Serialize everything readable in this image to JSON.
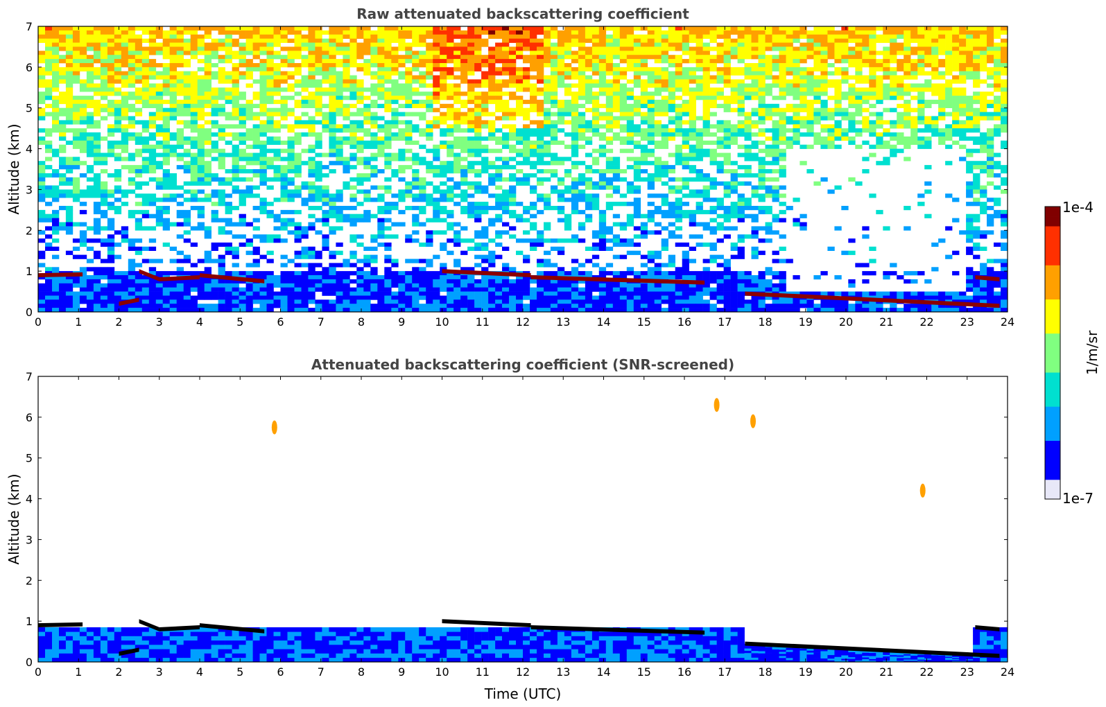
{
  "colors": {
    "jet_scale": [
      "#e8e8f8",
      "#0000ff",
      "#00a0ff",
      "#00e0d0",
      "#80ff80",
      "#ffff00",
      "#ffa000",
      "#ff3000",
      "#800000"
    ],
    "cloud_layer": "#8b0000",
    "screened_edge": "#000000",
    "title_text": "#444444"
  },
  "colorbar": {
    "max_label": "1e-4",
    "min_label": "1e-7",
    "unit_label": "1/m/sr",
    "scale": "log"
  },
  "chart_data": [
    {
      "type": "heatmap",
      "title": "Raw attenuated backscattering coefficient",
      "xlabel": "",
      "ylabel": "Altitude (km)",
      "xlim": [
        0,
        24
      ],
      "ylim": [
        0,
        7
      ],
      "x_ticks": [
        "0",
        "1",
        "2",
        "3",
        "4",
        "5",
        "6",
        "7",
        "8",
        "9",
        "10",
        "11",
        "12",
        "13",
        "14",
        "15",
        "16",
        "17",
        "18",
        "19",
        "20",
        "21",
        "22",
        "23",
        "24"
      ],
      "y_ticks": [
        "0",
        "1",
        "2",
        "3",
        "4",
        "5",
        "6",
        "7"
      ],
      "colorbar_range": [
        1e-07,
        0.0001
      ],
      "noise_background": true,
      "cloud_layers": [
        {
          "x": [
            0,
            1.1
          ],
          "y": [
            0.9,
            0.92
          ]
        },
        {
          "x": [
            2.0,
            2.5
          ],
          "y": [
            0.2,
            0.3
          ]
        },
        {
          "x": [
            2.5,
            3.0
          ],
          "y": [
            1.0,
            0.8
          ]
        },
        {
          "x": [
            3.0,
            4.0
          ],
          "y": [
            0.8,
            0.85
          ]
        },
        {
          "x": [
            4.0,
            5.6
          ],
          "y": [
            0.9,
            0.75
          ]
        },
        {
          "x": [
            10.0,
            12.2
          ],
          "y": [
            1.0,
            0.9
          ]
        },
        {
          "x": [
            12.2,
            16.5
          ],
          "y": [
            0.85,
            0.72
          ]
        },
        {
          "x": [
            17.5,
            23.8
          ],
          "y": [
            0.45,
            0.15
          ]
        },
        {
          "x": [
            23.2,
            23.8
          ],
          "y": [
            0.85,
            0.8
          ]
        }
      ]
    },
    {
      "type": "heatmap",
      "title": "Attenuated backscattering coefficient (SNR-screened)",
      "xlabel": "Time (UTC)",
      "ylabel": "Altitude (km)",
      "xlim": [
        0,
        24
      ],
      "ylim": [
        0,
        7
      ],
      "x_ticks": [
        "0",
        "1",
        "2",
        "3",
        "4",
        "5",
        "6",
        "7",
        "8",
        "9",
        "10",
        "11",
        "12",
        "13",
        "14",
        "15",
        "16",
        "17",
        "18",
        "19",
        "20",
        "21",
        "22",
        "23",
        "24"
      ],
      "y_ticks": [
        "0",
        "1",
        "2",
        "3",
        "4",
        "5",
        "6",
        "7"
      ],
      "colorbar_range": [
        1e-07,
        0.0001
      ],
      "noise_background": false,
      "cloud_layers": [
        {
          "x": [
            0,
            1.1
          ],
          "y": [
            0.9,
            0.92
          ]
        },
        {
          "x": [
            2.0,
            2.5
          ],
          "y": [
            0.2,
            0.3
          ]
        },
        {
          "x": [
            2.5,
            3.0
          ],
          "y": [
            1.0,
            0.8
          ]
        },
        {
          "x": [
            3.0,
            4.0
          ],
          "y": [
            0.8,
            0.85
          ]
        },
        {
          "x": [
            4.0,
            5.6
          ],
          "y": [
            0.9,
            0.75
          ]
        },
        {
          "x": [
            10.0,
            12.2
          ],
          "y": [
            1.0,
            0.9
          ]
        },
        {
          "x": [
            12.2,
            16.5
          ],
          "y": [
            0.85,
            0.72
          ]
        },
        {
          "x": [
            17.5,
            23.8
          ],
          "y": [
            0.45,
            0.15
          ]
        },
        {
          "x": [
            23.2,
            23.8
          ],
          "y": [
            0.85,
            0.8
          ]
        }
      ],
      "aerosol_patches": [
        {
          "x": 5.85,
          "y": 5.75
        },
        {
          "x": 16.8,
          "y": 6.3
        },
        {
          "x": 17.7,
          "y": 5.9
        },
        {
          "x": 21.9,
          "y": 4.2
        }
      ]
    }
  ]
}
